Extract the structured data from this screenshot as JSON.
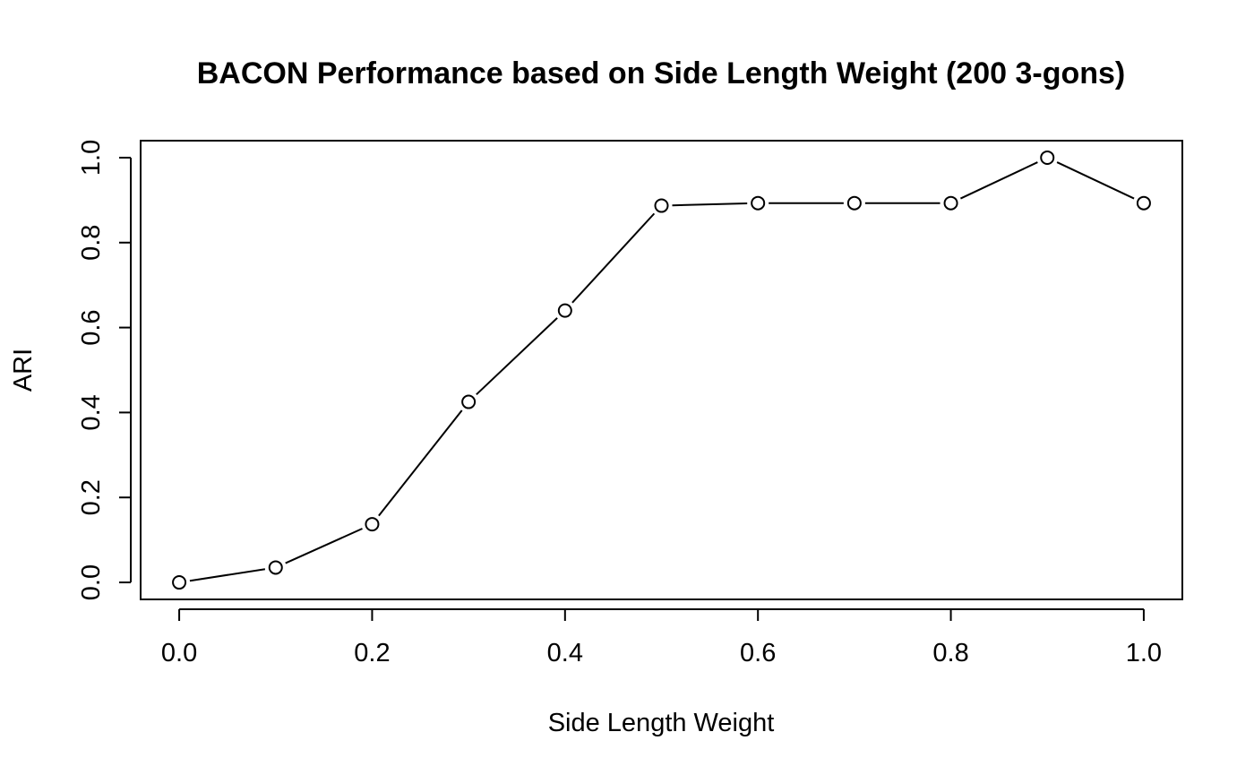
{
  "chart_data": {
    "type": "line",
    "title": "BACON Performance based on Side Length Weight (200 3-gons)",
    "xlabel": "Side Length Weight",
    "ylabel": "ARI",
    "x_ticks": [
      "0.0",
      "0.2",
      "0.4",
      "0.6",
      "0.8",
      "1.0"
    ],
    "y_ticks": [
      "0.0",
      "0.2",
      "0.4",
      "0.6",
      "0.8",
      "1.0"
    ],
    "xlim": [
      -0.04,
      1.04
    ],
    "ylim": [
      -0.04,
      1.04
    ],
    "grid": false,
    "marker": "open-circle",
    "series": [
      {
        "x": [
          0.0,
          0.1,
          0.2,
          0.3,
          0.4,
          0.5,
          0.6,
          0.7,
          0.8,
          0.9,
          1.0
        ],
        "y": [
          0.0,
          0.035,
          0.137,
          0.425,
          0.64,
          0.887,
          0.893,
          0.893,
          0.893,
          1.0,
          0.893
        ]
      }
    ]
  }
}
